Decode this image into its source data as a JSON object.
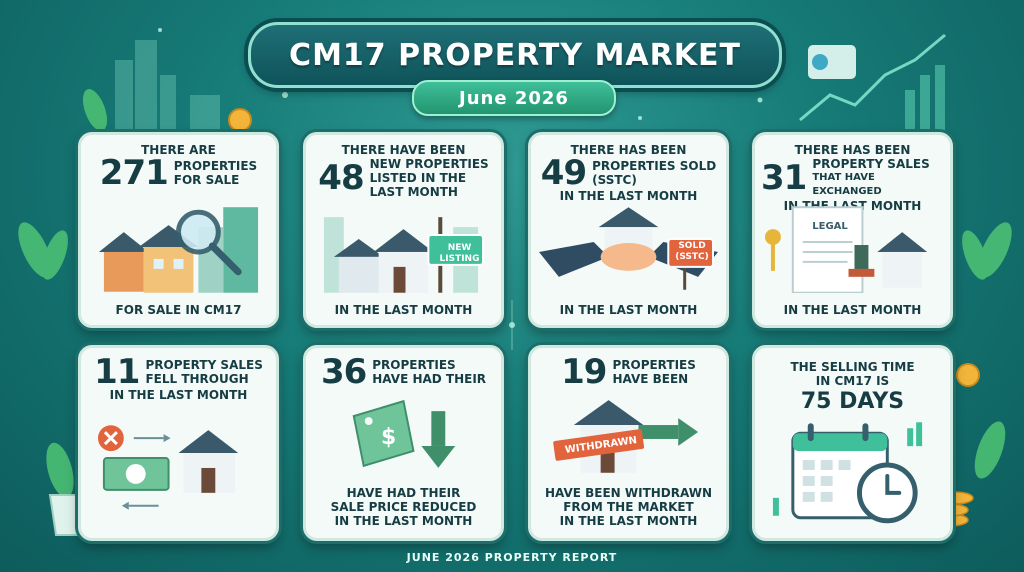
{
  "header": {
    "title": "CM17 Property Market",
    "date": "June 2026"
  },
  "cards": [
    {
      "number": "271",
      "pre": "There are",
      "line1": "Properties",
      "line2": "for sale",
      "foot": "For sale in CM17"
    },
    {
      "number": "48",
      "pre": "There have been",
      "line1": "New properties",
      "line2": "listed in the",
      "line3": "last month",
      "badge": "NEW LISTING",
      "foot": "In the last month"
    },
    {
      "number": "49",
      "pre": "There has been",
      "line1": "Properties sold",
      "line2": "(SSTC)",
      "line3": "in the last month",
      "badge": "SOLD (SSTC)",
      "foot": "In the last month"
    },
    {
      "number": "31",
      "pre": "There has been",
      "line1": "Property sales",
      "line2": "that have exchanged",
      "line3": "in the last month",
      "badge": "LEGAL",
      "foot": "In the last month"
    },
    {
      "number": "11",
      "line1": "Property sales",
      "line2": "fell through",
      "line3": "in the last month"
    },
    {
      "number": "36",
      "line1": "Properties",
      "line2": "have had their",
      "foot1": "Have had their",
      "foot2": "sale price reduced",
      "foot3": "in the last month"
    },
    {
      "number": "19",
      "line1": "Properties",
      "line2": "have been",
      "badge": "WITHDRAWN",
      "foot1": "Have been withdrawn",
      "foot2": "from the market",
      "foot3": "in the last month"
    },
    {
      "line1": "The selling time",
      "line2": "in CM17 is",
      "number": "75 DAYS"
    }
  ],
  "footer": {
    "text": "June 2026 Property Report"
  },
  "colors": {
    "background": "#167a76",
    "card": "#f4faf7",
    "accent": "#3fbf9a",
    "badge_red": "#e2643c"
  }
}
